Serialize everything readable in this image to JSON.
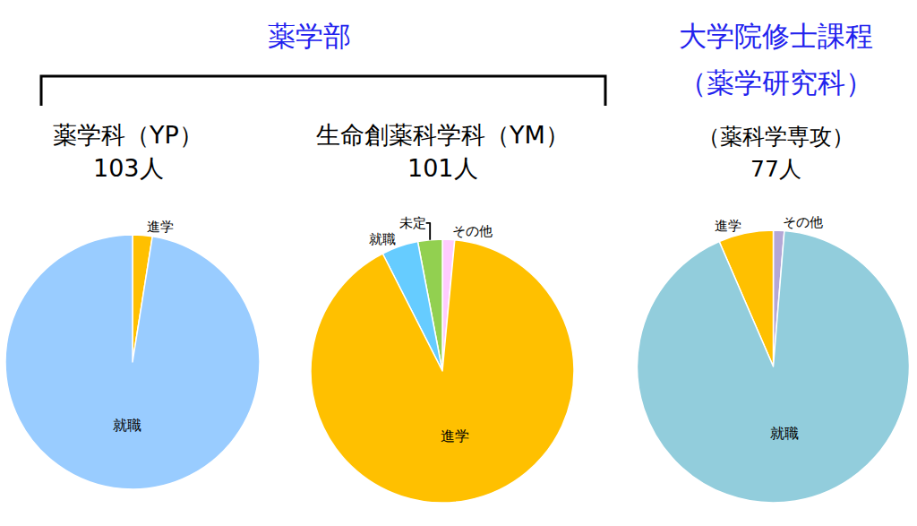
{
  "headers": {
    "faculty": "薬学部",
    "graduate": [
      "大学院修士課程",
      "（薬学研究科）"
    ]
  },
  "chart_data": [
    {
      "type": "pie",
      "title": "薬学科（YP）",
      "subtitle": "103人",
      "categories": [
        "進学",
        "就職"
      ],
      "values": [
        2.5,
        97.5
      ],
      "colors": [
        "#ffc000",
        "#99ccff"
      ]
    },
    {
      "type": "pie",
      "title": "生命創薬科学科（YM）",
      "subtitle": "101人",
      "categories": [
        "その他",
        "未定",
        "就職",
        "進学"
      ],
      "values": [
        1.5,
        3,
        4.5,
        91
      ],
      "colors": [
        "#ffccff",
        "#92d050",
        "#66ccff",
        "#ffc000"
      ]
    },
    {
      "type": "pie",
      "title": "（薬科学専攻）",
      "subtitle": "77人",
      "categories": [
        "その他",
        "進学",
        "就職"
      ],
      "values": [
        1.3,
        6.5,
        92.2
      ],
      "colors": [
        "#b4a7d6",
        "#ffc000",
        "#92cddc"
      ]
    }
  ]
}
